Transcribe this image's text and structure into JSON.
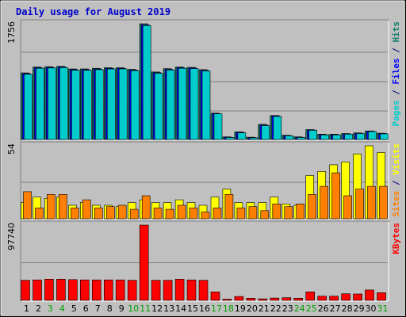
{
  "chart_data": {
    "type": "bar",
    "title": "Daily usage for August 2019",
    "colors": {
      "background": "#c0c0c0",
      "gridline": "#808080",
      "hits": "#0e7f6b",
      "files": "#0000ff",
      "pages": "#00cccc",
      "visits": "#ffff00",
      "sites": "#ff8000",
      "kbytes": "#ff0000",
      "weekend_tick": "#00a000",
      "weekday_tick": "#000000",
      "title": "#0000cc"
    },
    "categories": [
      "1",
      "2",
      "3",
      "4",
      "5",
      "6",
      "7",
      "8",
      "9",
      "10",
      "11",
      "12",
      "13",
      "14",
      "15",
      "16",
      "17",
      "18",
      "19",
      "20",
      "21",
      "22",
      "23",
      "24",
      "25",
      "26",
      "27",
      "28",
      "29",
      "30",
      "31"
    ],
    "weekend_days": [
      "3",
      "4",
      "10",
      "11",
      "17",
      "18",
      "24",
      "25",
      "31"
    ],
    "panels": [
      {
        "max_label": "1756",
        "ylim": [
          0,
          1756
        ],
        "right_label": [
          {
            "text": "Pages",
            "color": "#00cccc"
          },
          {
            "text": " / ",
            "color": "#000080"
          },
          {
            "text": "Files",
            "color": "#0000ff"
          },
          {
            "text": " / ",
            "color": "#000080"
          },
          {
            "text": "Hits",
            "color": "#0e7f6b"
          }
        ],
        "series": [
          {
            "name": "Hits",
            "color": "#0e7f6b",
            "values": [
              1010,
              1100,
              1105,
              1110,
              1070,
              1070,
              1080,
              1090,
              1090,
              1065,
              1756,
              1025,
              1075,
              1100,
              1095,
              1060,
              400,
              40,
              115,
              35,
              230,
              365,
              65,
              40,
              150,
              80,
              80,
              90,
              100,
              130,
              95
            ]
          },
          {
            "name": "Files",
            "color": "#0000ff",
            "values": [
              1000,
              1090,
              1095,
              1100,
              1060,
              1060,
              1070,
              1080,
              1080,
              1055,
              1740,
              1015,
              1065,
              1090,
              1085,
              1050,
              395,
              35,
              110,
              30,
              220,
              360,
              60,
              35,
              145,
              75,
              75,
              85,
              95,
              125,
              90
            ]
          },
          {
            "name": "Pages",
            "color": "#00cccc",
            "values": [
              990,
              1080,
              1085,
              1090,
              1050,
              1050,
              1060,
              1070,
              1070,
              1045,
              1730,
              1005,
              1055,
              1080,
              1075,
              1040,
              390,
              30,
              100,
              25,
              210,
              350,
              55,
              30,
              140,
              70,
              70,
              80,
              90,
              120,
              85
            ]
          }
        ]
      },
      {
        "max_label": "54",
        "ylim": [
          0,
          54
        ],
        "right_label": [
          {
            "text": "Sites",
            "color": "#ff8000"
          },
          {
            "text": " / ",
            "color": "#000080"
          },
          {
            "text": "Visits",
            "color": "#ffff00"
          }
        ],
        "series": [
          {
            "name": "Visits",
            "color": "#ffff00",
            "values": [
              12,
              16,
              15,
              16,
              10,
              12,
              10,
              10,
              9,
              12,
              14,
              12,
              12,
              14,
              12,
              10,
              16,
              22,
              12,
              12,
              12,
              16,
              11,
              10,
              32,
              35,
              40,
              42,
              48,
              54,
              49
            ]
          },
          {
            "name": "Sites",
            "color": "#ff8000",
            "values": [
              20,
              8,
              18,
              18,
              8,
              14,
              8,
              9,
              10,
              7,
              17,
              8,
              7,
              10,
              8,
              5,
              8,
              18,
              8,
              9,
              6,
              11,
              9,
              11,
              18,
              24,
              34,
              17,
              22,
              24,
              24
            ]
          }
        ]
      },
      {
        "max_label": "97740",
        "ylim": [
          0,
          97740
        ],
        "right_label": [
          {
            "text": "KBytes",
            "color": "#ff0000"
          }
        ],
        "series": [
          {
            "name": "KBytes",
            "color": "#ff0000",
            "values": [
              26000,
              26500,
              27500,
              27500,
              27000,
              26500,
              26500,
              26500,
              26500,
              26000,
              97740,
              26000,
              26000,
              27500,
              26500,
              26000,
              11000,
              1500,
              5000,
              2800,
              2000,
              3000,
              3500,
              2800,
              11000,
              5500,
              5500,
              8500,
              8200,
              13500,
              10000
            ]
          }
        ]
      }
    ]
  }
}
